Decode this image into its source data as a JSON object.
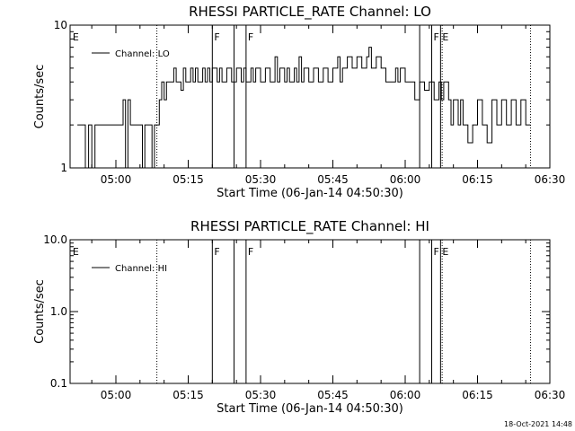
{
  "chart_data": [
    {
      "type": "line",
      "title": "RHESSI PARTICLE_RATE Channel: LO",
      "xlabel": "Start Time (06-Jan-14 04:50:30)",
      "ylabel": "Counts/sec",
      "yscale": "log",
      "ylim": [
        1,
        10
      ],
      "xlim": [
        "04:50:30",
        "06:30:00"
      ],
      "xticks": [
        "05:00",
        "05:15",
        "05:30",
        "05:45",
        "06:00",
        "06:15",
        "06:30"
      ],
      "yticks": [
        "1",
        "10"
      ],
      "legend": {
        "label": "Channel: LO",
        "placement": "top-left"
      },
      "series": [
        {
          "name": "Channel: LO",
          "points": [
            [
              "04:52",
              2
            ],
            [
              "04:53",
              2
            ],
            [
              "04:53:40",
              1
            ],
            [
              "04:54:20",
              2
            ],
            [
              "04:55",
              1
            ],
            [
              "04:55:40",
              2
            ],
            [
              "04:57",
              2
            ],
            [
              "04:59",
              2
            ],
            [
              "05:00",
              2
            ],
            [
              "05:01",
              2
            ],
            [
              "05:01:30",
              3
            ],
            [
              "05:02",
              1
            ],
            [
              "05:02:30",
              3
            ],
            [
              "05:03",
              2
            ],
            [
              "05:04",
              2
            ],
            [
              "05:05",
              2
            ],
            [
              "05:05:30",
              1
            ],
            [
              "05:06",
              2
            ],
            [
              "05:07",
              2
            ],
            [
              "05:07:30",
              1
            ],
            [
              "05:08",
              2
            ],
            [
              "05:09",
              3
            ],
            [
              "05:09:30",
              4
            ],
            [
              "05:10",
              3
            ],
            [
              "05:10:30",
              4
            ],
            [
              "05:11",
              4
            ],
            [
              "05:12",
              5
            ],
            [
              "05:12:30",
              4
            ],
            [
              "05:13",
              4
            ],
            [
              "05:13:30",
              3.5
            ],
            [
              "05:14",
              5
            ],
            [
              "05:14:30",
              4
            ],
            [
              "05:15",
              4
            ],
            [
              "05:15:30",
              5
            ],
            [
              "05:16",
              4
            ],
            [
              "05:16:30",
              5
            ],
            [
              "05:17",
              4
            ],
            [
              "05:18",
              5
            ],
            [
              "05:18:30",
              4
            ],
            [
              "05:19",
              5
            ],
            [
              "05:19:30",
              4
            ],
            [
              "05:20",
              5
            ],
            [
              "05:21",
              4
            ],
            [
              "05:21:30",
              5
            ],
            [
              "05:22",
              4
            ],
            [
              "05:23",
              5
            ],
            [
              "05:24",
              4
            ],
            [
              "05:25",
              5
            ],
            [
              "05:26",
              4
            ],
            [
              "05:26:30",
              5
            ],
            [
              "05:27",
              4
            ],
            [
              "05:28",
              5
            ],
            [
              "05:28:30",
              4
            ],
            [
              "05:29",
              5
            ],
            [
              "05:30",
              4
            ],
            [
              "05:31",
              5
            ],
            [
              "05:32",
              4
            ],
            [
              "05:33",
              6
            ],
            [
              "05:33:30",
              4
            ],
            [
              "05:34",
              5
            ],
            [
              "05:35",
              4
            ],
            [
              "05:35:30",
              5
            ],
            [
              "05:36",
              4
            ],
            [
              "05:37",
              5
            ],
            [
              "05:37:30",
              4
            ],
            [
              "05:38",
              6
            ],
            [
              "05:38:30",
              4
            ],
            [
              "05:39",
              5
            ],
            [
              "05:40",
              4
            ],
            [
              "05:41",
              5
            ],
            [
              "05:42",
              4
            ],
            [
              "05:43",
              5
            ],
            [
              "05:44",
              4
            ],
            [
              "05:45",
              5
            ],
            [
              "05:46",
              6
            ],
            [
              "05:46:30",
              4
            ],
            [
              "05:47",
              5
            ],
            [
              "05:48",
              6
            ],
            [
              "05:49",
              5
            ],
            [
              "05:50",
              6
            ],
            [
              "05:51",
              5
            ],
            [
              "05:52",
              6
            ],
            [
              "05:52:30",
              7
            ],
            [
              "05:53",
              5
            ],
            [
              "05:54",
              6
            ],
            [
              "05:55",
              5
            ],
            [
              "05:56",
              4
            ],
            [
              "05:57",
              4
            ],
            [
              "05:58",
              5
            ],
            [
              "05:58:30",
              4
            ],
            [
              "05:59",
              5
            ],
            [
              "06:00",
              4
            ],
            [
              "06:01",
              4
            ],
            [
              "06:02",
              3
            ],
            [
              "06:03",
              4
            ],
            [
              "06:04",
              3.5
            ],
            [
              "06:05",
              4
            ],
            [
              "06:06",
              3
            ],
            [
              "06:07",
              4
            ],
            [
              "06:07:30",
              3
            ],
            [
              "06:08",
              4
            ],
            [
              "06:09",
              3
            ],
            [
              "06:09:30",
              2
            ],
            [
              "06:10",
              3
            ],
            [
              "06:11",
              2
            ],
            [
              "06:11:30",
              3
            ],
            [
              "06:12",
              2
            ],
            [
              "06:13",
              1.5
            ],
            [
              "06:14",
              2
            ],
            [
              "06:15",
              3
            ],
            [
              "06:16",
              2
            ],
            [
              "06:17",
              1.5
            ],
            [
              "06:18",
              3
            ],
            [
              "06:19",
              2
            ],
            [
              "06:20",
              3
            ],
            [
              "06:21",
              2
            ],
            [
              "06:22",
              3
            ],
            [
              "06:23",
              2
            ],
            [
              "06:24",
              3
            ],
            [
              "06:25",
              2
            ],
            [
              "06:26",
              2
            ]
          ]
        }
      ],
      "markers": [
        {
          "label": "E",
          "time": "04:50:40",
          "style": "none"
        },
        {
          "label": "",
          "time": "05:08:30",
          "style": "dotted"
        },
        {
          "label": "F",
          "time": "05:20",
          "style": "solid"
        },
        {
          "label": "",
          "time": "05:24:30",
          "style": "solid"
        },
        {
          "label": "F",
          "time": "05:27",
          "style": "solid"
        },
        {
          "label": "",
          "time": "06:03",
          "style": "solid"
        },
        {
          "label": "F",
          "time": "06:05:30",
          "style": "solid"
        },
        {
          "label": "E",
          "time": "06:07:20",
          "style": "solid"
        },
        {
          "label": "",
          "time": "06:07:40",
          "style": "dotted"
        },
        {
          "label": "",
          "time": "06:26",
          "style": "dotted"
        }
      ]
    },
    {
      "type": "line",
      "title": "RHESSI PARTICLE_RATE Channel: HI",
      "xlabel": "Start Time (06-Jan-14 04:50:30)",
      "ylabel": "Counts/sec",
      "yscale": "log",
      "ylim": [
        0.1,
        10
      ],
      "xlim": [
        "04:50:30",
        "06:30:00"
      ],
      "xticks": [
        "05:00",
        "05:15",
        "05:30",
        "05:45",
        "06:00",
        "06:15",
        "06:30"
      ],
      "yticks": [
        "0.1",
        "1.0",
        "10.0"
      ],
      "legend": {
        "label": "Channel: HI",
        "placement": "top-left"
      },
      "series": [
        {
          "name": "Channel: HI",
          "points": []
        }
      ],
      "markers": [
        {
          "label": "E",
          "time": "04:50:40",
          "style": "none"
        },
        {
          "label": "",
          "time": "05:08:30",
          "style": "dotted"
        },
        {
          "label": "F",
          "time": "05:20",
          "style": "solid"
        },
        {
          "label": "",
          "time": "05:24:30",
          "style": "solid"
        },
        {
          "label": "F",
          "time": "05:27",
          "style": "solid"
        },
        {
          "label": "",
          "time": "06:03",
          "style": "solid"
        },
        {
          "label": "F",
          "time": "06:05:30",
          "style": "solid"
        },
        {
          "label": "E",
          "time": "06:07:20",
          "style": "solid"
        },
        {
          "label": "",
          "time": "06:07:40",
          "style": "dotted"
        },
        {
          "label": "",
          "time": "06:26",
          "style": "dotted"
        }
      ]
    }
  ],
  "footer": {
    "timestamp": "18-Oct-2021 14:48"
  }
}
